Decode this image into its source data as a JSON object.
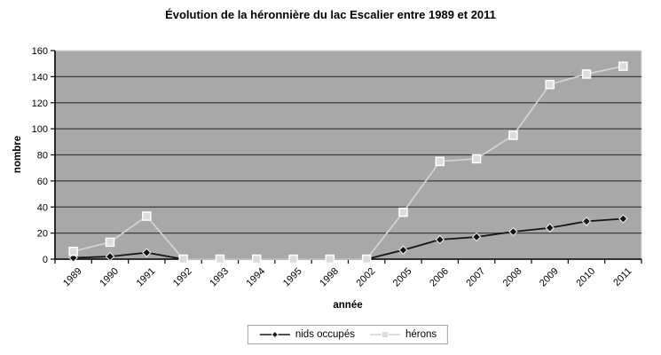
{
  "chart_data": {
    "type": "line",
    "title": "Évolution de la héronnière du lac Escalier entre 1989 et 2011",
    "categories": [
      "1989",
      "1990",
      "1991",
      "1992",
      "1993",
      "1994",
      "1995",
      "1998",
      "2002",
      "2005",
      "2006",
      "2007",
      "2008",
      "2009",
      "2010",
      "2011"
    ],
    "series": [
      {
        "key": "nids-occupes",
        "name": "nids occupés",
        "marker": "diamond",
        "color": "#141414",
        "marker_fill": "#141414",
        "marker_stroke": "#f2f2f2",
        "values": [
          1,
          2,
          5,
          0,
          0,
          0,
          0,
          0,
          0,
          7,
          15,
          17,
          21,
          24,
          29,
          31
        ]
      },
      {
        "key": "herons",
        "name": "hérons",
        "marker": "square",
        "color": "#d2d2d2",
        "marker_fill": "#dcdcdc",
        "marker_stroke": "#ffffff",
        "values": [
          6,
          13,
          33,
          0,
          0,
          0,
          0,
          0,
          0,
          36,
          75,
          77,
          95,
          134,
          142,
          148
        ]
      }
    ],
    "xlabel": "année",
    "ylabel": "nombre",
    "ylim": [
      0,
      160
    ],
    "yticks": [
      0,
      20,
      40,
      60,
      80,
      100,
      120,
      140,
      160
    ],
    "grid": true,
    "legend_position": "bottom",
    "colors": {
      "background": "#ffffff",
      "plot_bg": "#a8a8a8",
      "gridline": "#3d3d3d",
      "axis": "#1a1a1a",
      "text": "#000000",
      "plot_border": "#d9d9d9",
      "legend_border": "#a3a3a3"
    }
  }
}
